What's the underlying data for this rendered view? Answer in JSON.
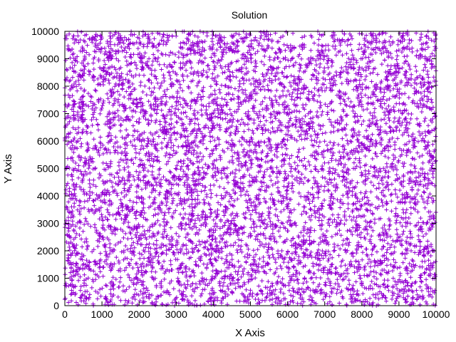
{
  "chart_data": {
    "type": "scatter",
    "title": "Solution",
    "xlabel": "X Axis",
    "ylabel": "Y Axis",
    "xlim": [
      0,
      10000
    ],
    "ylim": [
      0,
      10000
    ],
    "xticks": [
      "0",
      "1000",
      "2000",
      "3000",
      "4000",
      "5000",
      "6000",
      "7000",
      "8000",
      "9000",
      "10000"
    ],
    "yticks": [
      "0",
      "1000",
      "2000",
      "3000",
      "4000",
      "5000",
      "6000",
      "7000",
      "8000",
      "9000",
      "10000"
    ],
    "grid": false,
    "legend": "none",
    "marker": "plus",
    "series_color": "#9400d3",
    "point_count": 10000,
    "point_distribution": "uniform random over [0,10000] x [0,10000]"
  }
}
